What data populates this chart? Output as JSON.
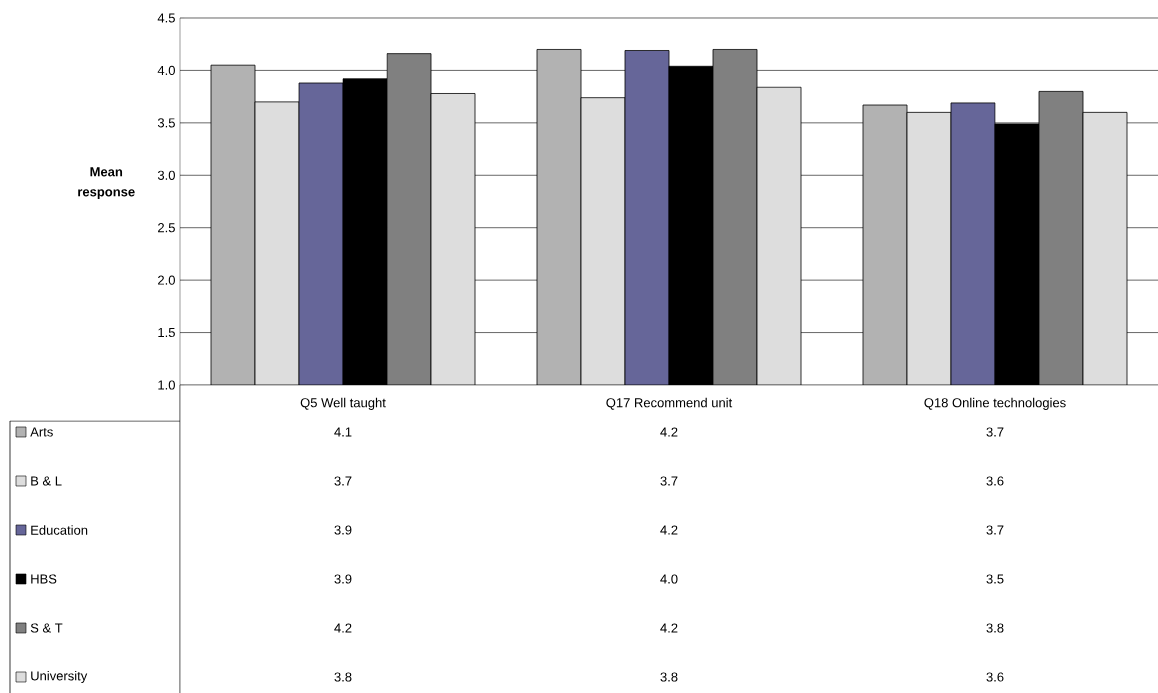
{
  "chart_data": {
    "type": "bar",
    "ylabel": "Mean response",
    "categories": [
      "Q5 Well taught",
      "Q17 Recommend unit",
      "Q18 Online technologies"
    ],
    "series": [
      {
        "name": "Arts",
        "color": "#b2b2b2",
        "values": [
          4.05,
          4.2,
          3.67
        ],
        "value_labels": [
          "4.1",
          "4.2",
          "3.7"
        ]
      },
      {
        "name": "B & L",
        "color": "#dddddd",
        "values": [
          3.7,
          3.74,
          3.6
        ],
        "value_labels": [
          "3.7",
          "3.7",
          "3.6"
        ]
      },
      {
        "name": "Education",
        "color": "#666699",
        "values": [
          3.88,
          4.19,
          3.69
        ],
        "value_labels": [
          "3.9",
          "4.2",
          "3.7"
        ]
      },
      {
        "name": "HBS",
        "color": "#000000",
        "values": [
          3.92,
          4.04,
          3.49
        ],
        "value_labels": [
          "3.9",
          "4.0",
          "3.5"
        ]
      },
      {
        "name": "S & T",
        "color": "#808080",
        "values": [
          4.16,
          4.2,
          3.8
        ],
        "value_labels": [
          "4.2",
          "4.2",
          "3.8"
        ]
      },
      {
        "name": "University",
        "color": "#dddddd",
        "values": [
          3.78,
          3.84,
          3.6
        ],
        "value_labels": [
          "3.8",
          "3.8",
          "3.6"
        ]
      }
    ],
    "ylim": [
      1,
      4.5
    ],
    "yticks": [
      {
        "value": 1,
        "label": "1.0"
      },
      {
        "value": 1.5,
        "label": "1.5"
      },
      {
        "value": 2,
        "label": "2.0"
      },
      {
        "value": 2.5,
        "label": "2.5"
      },
      {
        "value": 3,
        "label": "3.0"
      },
      {
        "value": 3.5,
        "label": "3.5"
      },
      {
        "value": 4,
        "label": "4.0"
      },
      {
        "value": 4.5,
        "label": "4.5"
      }
    ],
    "grid": "y",
    "legend": "bottom left"
  }
}
